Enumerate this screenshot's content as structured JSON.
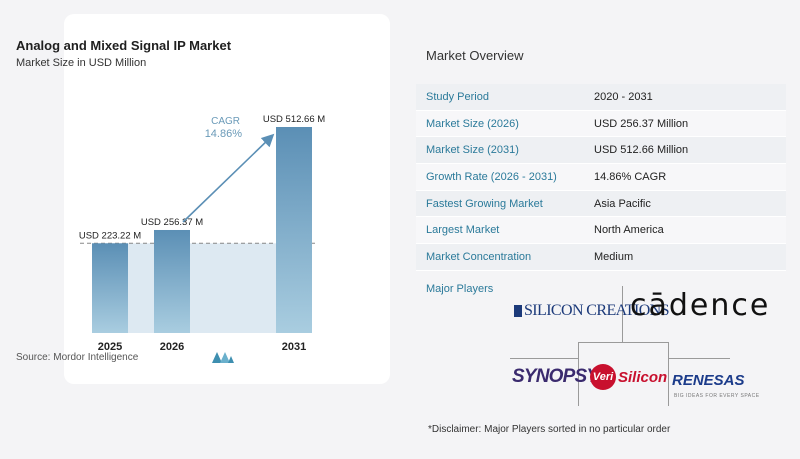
{
  "chart": {
    "title": "Analog and Mixed Signal IP Market",
    "subtitle": "Market Size in USD Million",
    "source": "Source: Mordor Intelligence",
    "cagr_label": "CAGR",
    "cagr_value": "14.86%"
  },
  "chart_data": {
    "type": "bar",
    "title": "Analog and Mixed Signal IP Market",
    "subtitle": "Market Size in USD Million",
    "categories": [
      "2025",
      "2026",
      "2031"
    ],
    "values": [
      223.22,
      256.37,
      512.66
    ],
    "data_labels": [
      "USD 223.22 M",
      "USD 256.37 M",
      "USD 512.66 M"
    ],
    "unit": "USD Million",
    "ylim": [
      0,
      512.66
    ],
    "cagr": "14.86%",
    "grid": false,
    "legend": "none",
    "colors": {
      "bar_top": "#5b8fb5",
      "bar_bottom": "#a9cde0",
      "shaded_area": "#dde9f2",
      "baseline": "#888888",
      "arrow": "#5b8fb5"
    }
  },
  "overview": {
    "title": "Market Overview",
    "rows": [
      {
        "label": "Study Period",
        "value": "2020 - 2031"
      },
      {
        "label": "Market Size (2026)",
        "value": "USD 256.37 Million"
      },
      {
        "label": "Market Size (2031)",
        "value": "USD 512.66 Million"
      },
      {
        "label": "Growth Rate (2026 - 2031)",
        "value": "14.86% CAGR"
      },
      {
        "label": "Fastest Growing Market",
        "value": "Asia Pacific"
      },
      {
        "label": "Largest Market",
        "value": "North America"
      },
      {
        "label": "Market Concentration",
        "value": "Medium"
      }
    ]
  },
  "players": {
    "label": "Major Players",
    "logos": {
      "silicon_creations": "SILICON CREATIONS",
      "cadence": "cādence",
      "synopsys": "SYNOPSYS",
      "verisilicon_badge": "Veri",
      "verisilicon_text": "Silicon",
      "renesas": "RENESAS",
      "renesas_tagline": "BIG IDEAS FOR EVERY SPACE"
    }
  },
  "disclaimer": "*Disclaimer: Major Players sorted in no particular order"
}
